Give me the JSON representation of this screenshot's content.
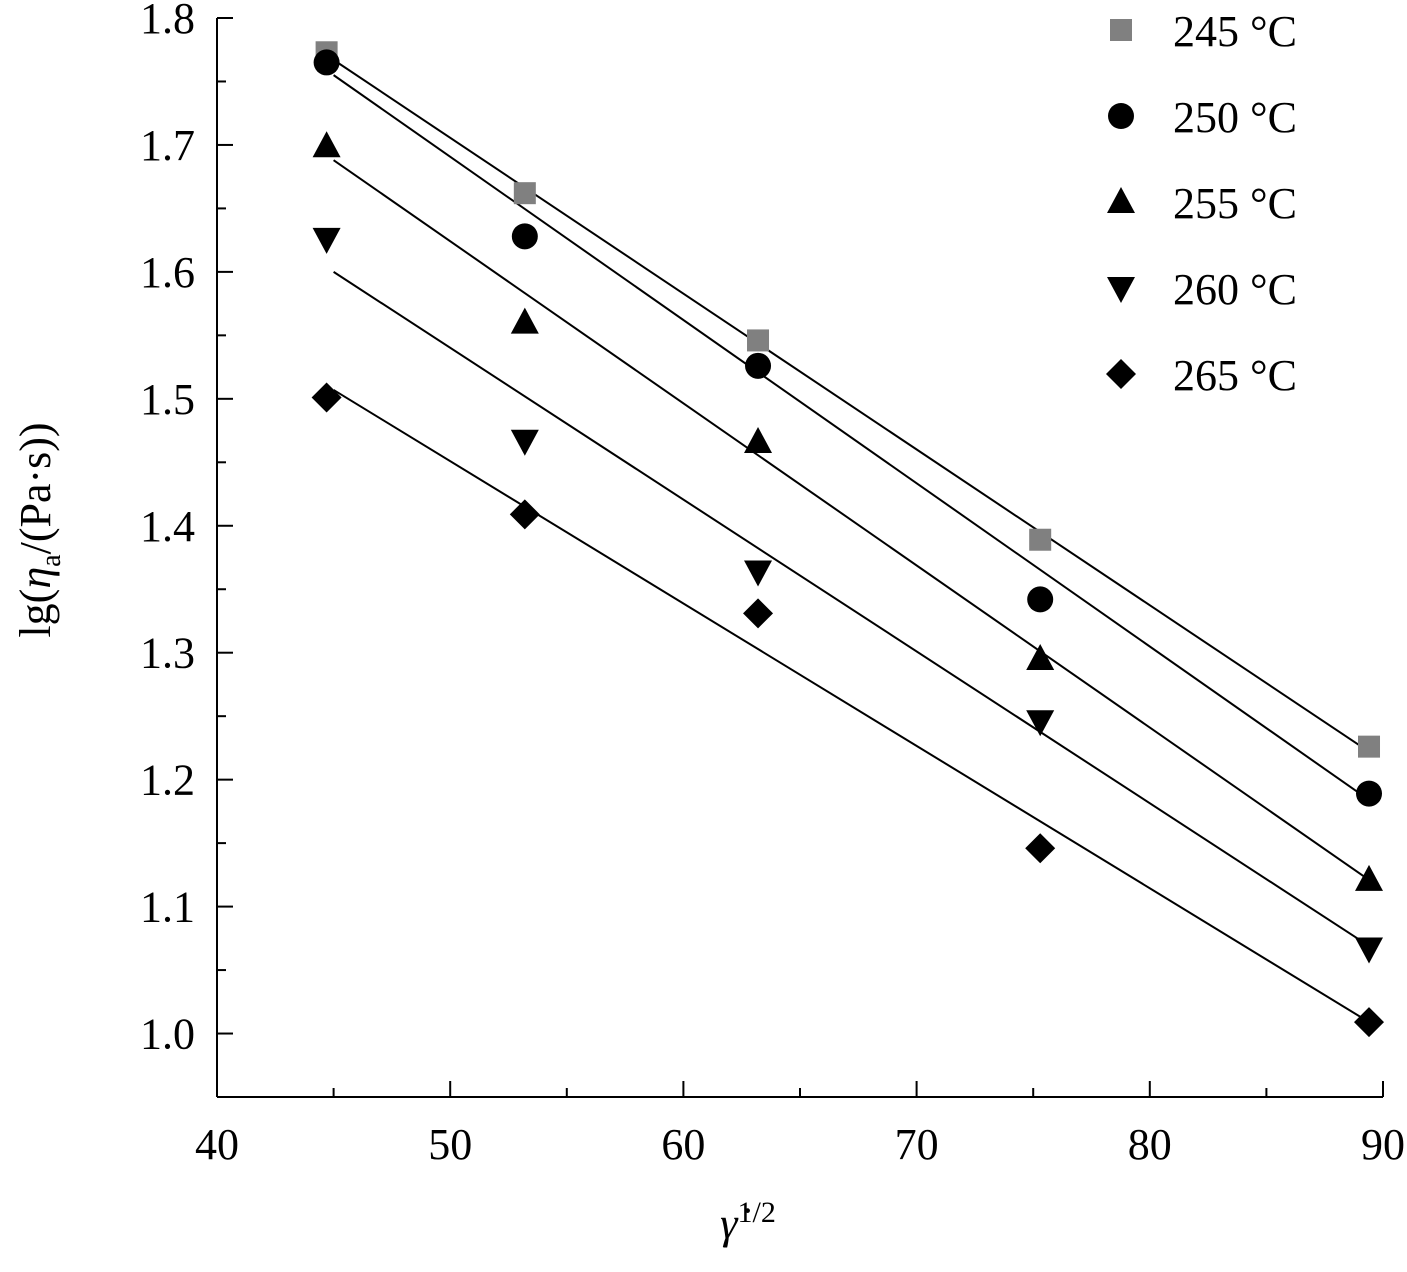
{
  "chart_data": {
    "type": "scatter",
    "xlabel": "γ̇",
    "xlabel_sup": "1/2",
    "ylabel_prefix": "lg(",
    "ylabel_eta": "η",
    "ylabel_sub": "a",
    "ylabel_suffix": "/(Pa·s))",
    "xlim": [
      40,
      90
    ],
    "ylim": [
      0.95,
      1.8
    ],
    "x_ticks": [
      "40",
      "50",
      "60",
      "70",
      "80",
      "90"
    ],
    "y_ticks": [
      "1.0",
      "1.1",
      "1.2",
      "1.3",
      "1.4",
      "1.5",
      "1.6",
      "1.7",
      "1.8"
    ],
    "legend_position": "top-right",
    "grid": false,
    "series": [
      {
        "name": "245 °C",
        "marker": "square",
        "color": "#808080",
        "x": [
          44.7,
          53.2,
          63.2,
          75.3,
          89.4
        ],
        "y": [
          1.773,
          1.662,
          1.546,
          1.389,
          1.226
        ],
        "fit": [
          [
            45,
            1.767
          ],
          [
            89.4,
            1.222
          ]
        ]
      },
      {
        "name": "250 °C",
        "marker": "circle",
        "color": "#000000",
        "x": [
          44.7,
          53.2,
          63.2,
          75.3,
          89.4
        ],
        "y": [
          1.765,
          1.628,
          1.526,
          1.342,
          1.189
        ],
        "fit": [
          [
            45,
            1.755
          ],
          [
            89.4,
            1.184
          ]
        ]
      },
      {
        "name": "255 °C",
        "marker": "triangle-up",
        "color": "#000000",
        "x": [
          44.7,
          53.2,
          63.2,
          75.3,
          89.4
        ],
        "y": [
          1.699,
          1.56,
          1.466,
          1.295,
          1.121
        ],
        "fit": [
          [
            45,
            1.688
          ],
          [
            89.4,
            1.121
          ]
        ]
      },
      {
        "name": "260 °C",
        "marker": "triangle-down",
        "color": "#000000",
        "x": [
          44.7,
          53.2,
          63.2,
          75.3,
          89.4
        ],
        "y": [
          1.626,
          1.467,
          1.364,
          1.246,
          1.067
        ],
        "fit": [
          [
            45,
            1.6
          ],
          [
            89.4,
            1.069
          ]
        ]
      },
      {
        "name": "265 °C",
        "marker": "diamond",
        "color": "#000000",
        "x": [
          44.7,
          53.2,
          63.2,
          75.3,
          89.4
        ],
        "y": [
          1.501,
          1.409,
          1.331,
          1.146,
          1.009
        ],
        "fit": [
          [
            45,
            1.507
          ],
          [
            89.4,
            1.009
          ]
        ]
      }
    ]
  }
}
